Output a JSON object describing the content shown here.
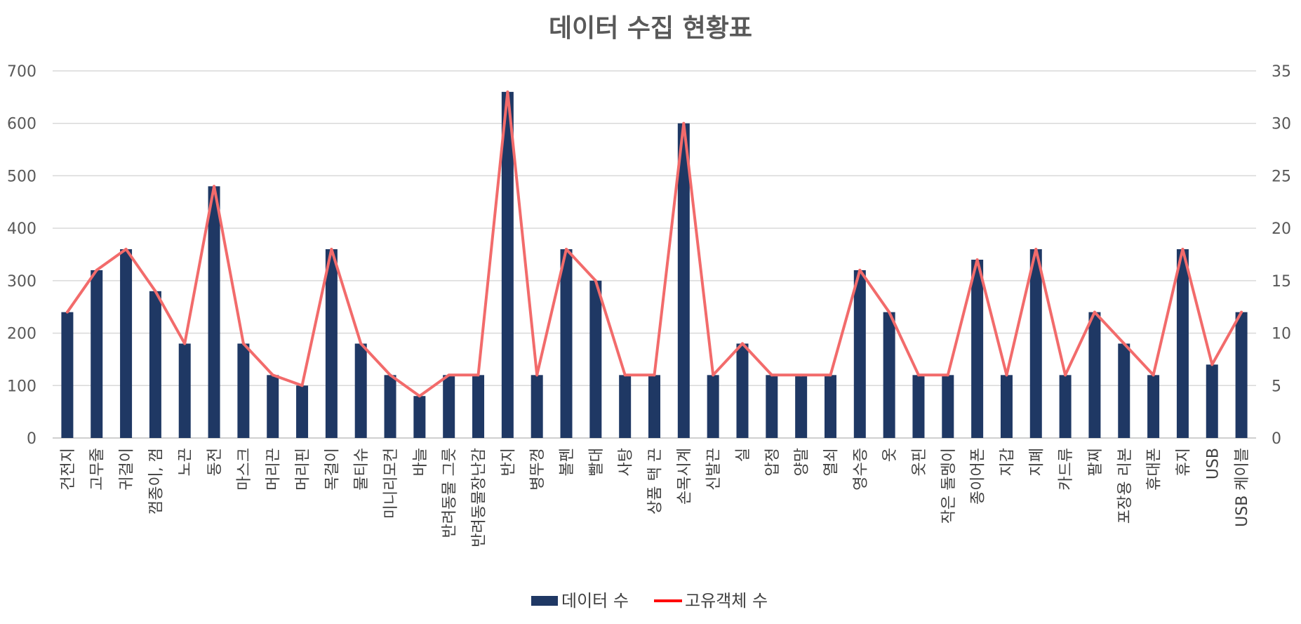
{
  "chart_data": {
    "type": "bar",
    "title": "데이터 수집 현황표",
    "categories": [
      "건전지",
      "고무줄",
      "귀걸이",
      "껌종이, 껌",
      "노끈",
      "동전",
      "마스크",
      "머리끈",
      "머리핀",
      "목걸이",
      "물티슈",
      "미니리모컨",
      "바늘",
      "반려동물 그릇",
      "반려동물장난감",
      "반지",
      "병뚜껑",
      "볼펜",
      "빨대",
      "사탕",
      "상품 택 끈",
      "손목시계",
      "신발끈",
      "실",
      "압정",
      "양말",
      "열쇠",
      "영수증",
      "옷",
      "옷핀",
      "작은 돌멩이",
      "종이어폰",
      "지갑",
      "지폐",
      "카드류",
      "팔찌",
      "포장용 리본",
      "휴대폰",
      "휴지",
      "USB",
      "USB 케이블"
    ],
    "series": [
      {
        "name": "데이터 수",
        "type": "bar",
        "axis": "left",
        "color": "#1f3864",
        "values": [
          240,
          320,
          360,
          280,
          180,
          480,
          180,
          120,
          100,
          360,
          180,
          120,
          80,
          120,
          120,
          660,
          120,
          360,
          300,
          120,
          120,
          600,
          120,
          180,
          120,
          120,
          120,
          320,
          240,
          120,
          120,
          340,
          120,
          360,
          120,
          240,
          180,
          120,
          360,
          140,
          240
        ]
      },
      {
        "name": "고유객체 수",
        "type": "line",
        "axis": "right",
        "color": "#f26b6b",
        "values": [
          12,
          16,
          18,
          14,
          9,
          24,
          9,
          6,
          5,
          18,
          9,
          6,
          4,
          6,
          6,
          33,
          6,
          18,
          15,
          6,
          6,
          30,
          6,
          9,
          6,
          6,
          6,
          16,
          12,
          6,
          6,
          17,
          6,
          18,
          6,
          12,
          9,
          6,
          18,
          7,
          12
        ]
      }
    ],
    "ylim": [
      0,
      700
    ],
    "yticks": [
      0,
      100,
      200,
      300,
      400,
      500,
      600,
      700
    ],
    "y2lim": [
      0,
      35
    ],
    "y2ticks": [
      0,
      5,
      10,
      15,
      20,
      25,
      30,
      35
    ],
    "grid": true,
    "legend": "bottom",
    "legend_line_color": "#ff0000"
  }
}
